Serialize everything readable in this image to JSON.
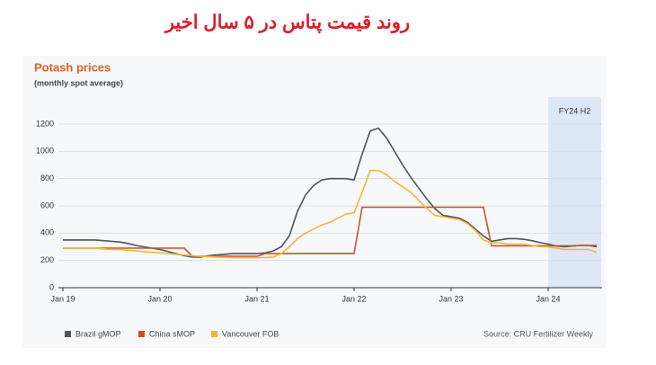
{
  "header": {
    "title": "روند قیمت پتاس در ۵ سال اخیر"
  },
  "chart_data": {
    "type": "line",
    "title": "Potash prices",
    "subtitle": "(monthly spot average)",
    "source": "Source: CRU Fertilizer Weekly",
    "x": [
      0,
      1,
      2,
      3,
      4,
      5,
      6,
      7,
      8,
      9,
      10,
      11,
      12,
      13,
      14,
      15,
      16,
      17,
      18,
      19,
      20,
      21,
      22,
      23,
      24,
      25,
      26,
      27,
      28,
      29,
      30,
      31,
      32,
      33,
      34,
      35,
      36,
      37,
      38,
      39,
      40,
      41,
      42,
      43,
      44,
      45,
      46,
      47,
      48,
      49,
      50,
      51,
      52,
      53,
      54,
      55,
      56,
      57,
      58,
      59,
      60,
      61,
      62,
      63,
      64,
      65,
      66
    ],
    "xlim": [
      0,
      66
    ],
    "xticks": [
      {
        "value": 0,
        "label": "Jan 19"
      },
      {
        "value": 12,
        "label": "Jan 20"
      },
      {
        "value": 24,
        "label": "Jan 21"
      },
      {
        "value": 36,
        "label": "Jan 22"
      },
      {
        "value": 48,
        "label": "Jan 23"
      },
      {
        "value": 60,
        "label": "Jan 24"
      }
    ],
    "ylim": [
      0,
      1200
    ],
    "yticks": [
      0,
      200,
      400,
      600,
      800,
      1000,
      1200
    ],
    "grid": true,
    "highlight": {
      "label": "FY24 H2",
      "from": 60,
      "to": 66
    },
    "series": [
      {
        "name": "Brazil gMOP",
        "color": "#4a5560",
        "values": [
          350,
          350,
          350,
          350,
          350,
          345,
          340,
          335,
          325,
          310,
          300,
          290,
          280,
          265,
          250,
          235,
          225,
          225,
          235,
          240,
          245,
          250,
          250,
          250,
          250,
          255,
          270,
          300,
          380,
          560,
          680,
          750,
          790,
          800,
          800,
          800,
          790,
          980,
          1150,
          1170,
          1100,
          1000,
          900,
          810,
          730,
          650,
          580,
          530,
          520,
          510,
          480,
          430,
          380,
          340,
          350,
          360,
          360,
          355,
          345,
          330,
          320,
          305,
          300,
          305,
          310,
          310,
          300
        ]
      },
      {
        "name": "China sMOP",
        "color": "#c8532b",
        "values": [
          290,
          290,
          290,
          290,
          290,
          290,
          290,
          290,
          290,
          290,
          290,
          290,
          290,
          290,
          290,
          290,
          230,
          230,
          230,
          230,
          230,
          230,
          230,
          230,
          230,
          250,
          250,
          250,
          250,
          250,
          250,
          250,
          250,
          250,
          250,
          250,
          250,
          590,
          590,
          590,
          590,
          590,
          590,
          590,
          590,
          590,
          590,
          590,
          590,
          590,
          590,
          590,
          590,
          307,
          307,
          307,
          307,
          307,
          307,
          307,
          307,
          307,
          307,
          307,
          310,
          310,
          310
        ]
      },
      {
        "name": "Vancouver FOB",
        "color": "#f0b73a",
        "values": [
          290,
          290,
          290,
          290,
          290,
          285,
          280,
          280,
          275,
          270,
          265,
          260,
          255,
          250,
          245,
          240,
          235,
          230,
          228,
          225,
          222,
          220,
          220,
          220,
          220,
          220,
          225,
          250,
          300,
          360,
          400,
          430,
          460,
          480,
          510,
          540,
          550,
          700,
          860,
          860,
          830,
          780,
          740,
          700,
          640,
          580,
          530,
          520,
          510,
          500,
          470,
          420,
          350,
          330,
          330,
          320,
          320,
          320,
          310,
          300,
          300,
          290,
          280,
          280,
          280,
          280,
          260
        ]
      }
    ]
  }
}
